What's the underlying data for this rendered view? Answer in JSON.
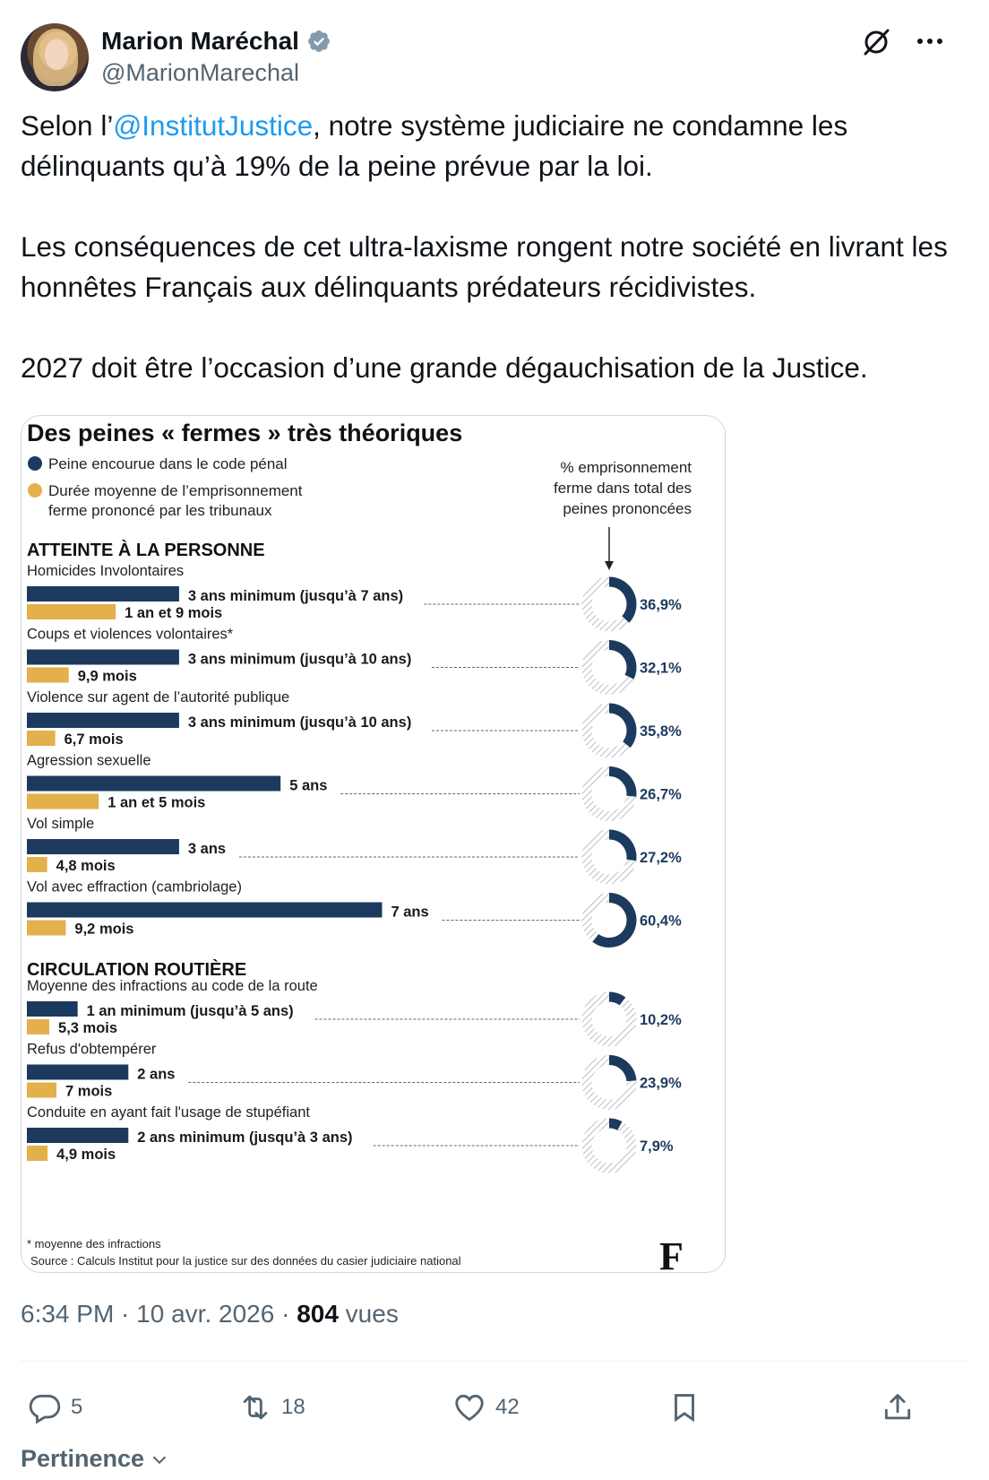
{
  "author": {
    "name": "Marion Maréchal",
    "handle": "@MarionMarechal"
  },
  "tweet": {
    "p1_before": "Selon l’",
    "p1_mention": "@InstitutJustice",
    "p1_after": ", notre système judiciaire ne condamne les délinquants qu’à 19% de la peine prévue par la loi.",
    "p2": "Les conséquences de cet ultra-laxisme rongent notre société en livrant les honnêtes Français aux délinquants prédateurs récidivistes.",
    "p3": "2027 doit être l’occasion d’une grande dégauchisation de la Justice."
  },
  "infographic": {
    "title": "Des peines « fermes » très théoriques",
    "legend": {
      "encourue": "Peine encourue dans le code pénal",
      "prononce_1": "Durée moyenne de l’emprisonnement",
      "prononce_2": "ferme prononcé par les tribunaux",
      "pct_1": "% emprisonnement",
      "pct_2": "ferme dans total des",
      "pct_3": "peines prononcées"
    },
    "colors": {
      "encourue": "#1c3a5e",
      "prononce": "#e3b04b",
      "hatch": "#c9ced4"
    },
    "sections": [
      {
        "heading": "ATTEINTE À LA PERSONNE",
        "rows": [
          {
            "label": "Homicides Involontaires",
            "encourue_text": "3 ans minimum (jusqu’à 7 ans)",
            "encourue_months": 36,
            "prononce_text": "1 an et 9 mois",
            "prononce_months": 21,
            "pct_text": "36,9%",
            "pct": 36.9
          },
          {
            "label": "Coups et violences volontaires*",
            "encourue_text": "3 ans minimum (jusqu’à 10 ans)",
            "encourue_months": 36,
            "prononce_text": "9,9 mois",
            "prononce_months": 9.9,
            "pct_text": "32,1%",
            "pct": 32.1
          },
          {
            "label": "Violence sur agent de l’autorité publique",
            "encourue_text": "3 ans minimum (jusqu’à 10 ans)",
            "encourue_months": 36,
            "prononce_text": "6,7 mois",
            "prononce_months": 6.7,
            "pct_text": "35,8%",
            "pct": 35.8
          },
          {
            "label": "Agression sexuelle",
            "encourue_text": "5 ans",
            "encourue_months": 60,
            "prononce_text": "1 an et 5 mois",
            "prononce_months": 17,
            "pct_text": "26,7%",
            "pct": 26.7
          },
          {
            "label": "Vol simple",
            "encourue_text": "3 ans",
            "encourue_months": 36,
            "prononce_text": "4,8 mois",
            "prononce_months": 4.8,
            "pct_text": "27,2%",
            "pct": 27.2
          },
          {
            "label": "Vol avec effraction (cambriolage)",
            "encourue_text": "7 ans",
            "encourue_months": 84,
            "prononce_text": "9,2 mois",
            "prononce_months": 9.2,
            "pct_text": "60,4%",
            "pct": 60.4
          }
        ]
      },
      {
        "heading": "CIRCULATION ROUTIÈRE",
        "rows": [
          {
            "label": "Moyenne des infractions au code de la route",
            "encourue_text": "1 an minimum (jusqu’à 5 ans)",
            "encourue_months": 12,
            "prononce_text": "5,3 mois",
            "prononce_months": 5.3,
            "pct_text": "10,2%",
            "pct": 10.2
          },
          {
            "label": "Refus d'obtempérer",
            "encourue_text": "2 ans",
            "encourue_months": 24,
            "prononce_text": "7 mois",
            "prononce_months": 7,
            "pct_text": "23,9%",
            "pct": 23.9
          },
          {
            "label": "Conduite en ayant fait l'usage de stupéfiant",
            "encourue_text": "2 ans minimum (jusqu’à 3 ans)",
            "encourue_months": 24,
            "prononce_text": "4,9 mois",
            "prononce_months": 4.9,
            "pct_text": "7,9%",
            "pct": 7.9
          }
        ]
      }
    ],
    "footnote": "* moyenne des infractions",
    "source": "Source : Calculs Institut pour la justice sur des données du casier judiciaire national",
    "logo": "F"
  },
  "meta": {
    "time": "6:34 PM",
    "sep1": " · ",
    "date": "10 avr. 2026",
    "sep2": " · ",
    "views_count": "804",
    "views_label": " vues"
  },
  "actions": {
    "replies": "5",
    "reposts": "18",
    "likes": "42"
  },
  "sort_label": "Pertinence"
}
